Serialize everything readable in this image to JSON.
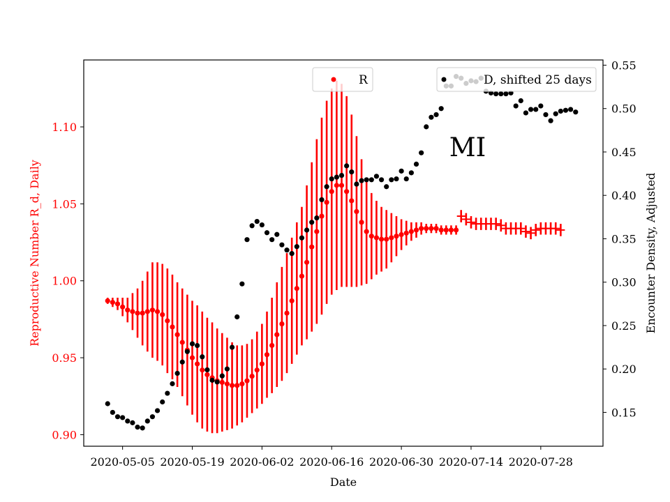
{
  "chart_data": {
    "type": "scatter",
    "annotation": "MI",
    "x_start": "2020-05-02",
    "xlabel": "Date",
    "ylabel_left": "Reproductive Number R_d, Daily",
    "ylabel_right": "Encounter Density, Adjusted",
    "x_ticks": [
      {
        "day": 3,
        "label": "2020-05-05"
      },
      {
        "day": 17,
        "label": "2020-05-19"
      },
      {
        "day": 31,
        "label": "2020-06-02"
      },
      {
        "day": 45,
        "label": "2020-06-16"
      },
      {
        "day": 59,
        "label": "2020-06-30"
      },
      {
        "day": 73,
        "label": "2020-07-14"
      },
      {
        "day": 87,
        "label": "2020-07-28"
      }
    ],
    "xlim": [
      -4.8,
      99.5
    ],
    "ylim_left": [
      0.8925,
      1.1435
    ],
    "ylim_right": [
      0.111,
      0.556
    ],
    "left_ticks": [
      {
        "value": 0.9,
        "label": "0.90"
      },
      {
        "value": 0.95,
        "label": "0.95"
      },
      {
        "value": 1.0,
        "label": "1.00"
      },
      {
        "value": 1.05,
        "label": "1.05"
      },
      {
        "value": 1.1,
        "label": "1.10"
      }
    ],
    "right_ticks": [
      {
        "value": 0.15,
        "label": "0.15"
      },
      {
        "value": 0.2,
        "label": "0.20"
      },
      {
        "value": 0.25,
        "label": "0.25"
      },
      {
        "value": 0.3,
        "label": "0.30"
      },
      {
        "value": 0.35,
        "label": "0.35"
      },
      {
        "value": 0.4,
        "label": "0.40"
      },
      {
        "value": 0.45,
        "label": "0.45"
      },
      {
        "value": 0.5,
        "label": "0.50"
      },
      {
        "value": 0.55,
        "label": "0.55"
      }
    ],
    "colors": {
      "R": "#ff0000",
      "D": "#000000",
      "left_axis": "#ff0000",
      "right_axis": "#000000"
    },
    "legend": [
      {
        "name": "R",
        "position": "top-center"
      },
      {
        "name": "D, shifted 25 days",
        "position": "top-right"
      }
    ],
    "series": [
      {
        "name": "R",
        "axis": "left",
        "start_day": 0,
        "values": [
          0.987,
          0.986,
          0.985,
          0.983,
          0.981,
          0.98,
          0.979,
          0.979,
          0.98,
          0.981,
          0.98,
          0.978,
          0.974,
          0.97,
          0.965,
          0.96,
          0.955,
          0.95,
          0.946,
          0.942,
          0.939,
          0.937,
          0.935,
          0.934,
          0.933,
          0.932,
          0.932,
          0.933,
          0.935,
          0.938,
          0.942,
          0.946,
          0.952,
          0.958,
          0.965,
          0.972,
          0.979,
          0.987,
          0.995,
          1.003,
          1.012,
          1.022,
          1.032,
          1.042,
          1.051,
          1.058,
          1.062,
          1.062,
          1.058,
          1.052,
          1.045,
          1.038,
          1.032,
          1.029,
          1.028,
          1.027,
          1.027,
          1.028,
          1.029,
          1.03,
          1.031,
          1.032,
          1.033,
          1.034,
          1.034,
          1.034,
          1.034,
          1.033,
          1.033,
          1.033,
          1.033,
          1.042,
          1.04,
          1.038,
          1.037,
          1.037,
          1.037,
          1.037,
          1.037,
          1.036,
          1.034,
          1.034,
          1.034,
          1.034,
          1.032,
          1.031,
          1.033,
          1.034,
          1.034,
          1.034,
          1.034,
          1.033
        ],
        "errors": [
          0.002,
          0.003,
          0.004,
          0.006,
          0.008,
          0.012,
          0.016,
          0.021,
          0.026,
          0.031,
          0.032,
          0.033,
          0.034,
          0.034,
          0.034,
          0.035,
          0.036,
          0.037,
          0.038,
          0.038,
          0.037,
          0.036,
          0.034,
          0.032,
          0.03,
          0.028,
          0.026,
          0.025,
          0.024,
          0.024,
          0.025,
          0.026,
          0.028,
          0.031,
          0.034,
          0.037,
          0.039,
          0.041,
          0.043,
          0.045,
          0.05,
          0.055,
          0.06,
          0.064,
          0.066,
          0.067,
          0.068,
          0.066,
          0.062,
          0.056,
          0.049,
          0.041,
          0.034,
          0.028,
          0.024,
          0.021,
          0.019,
          0.016,
          0.013,
          0.01,
          0.008,
          0.006,
          0.005,
          0.004,
          0.003,
          0.003,
          0.003,
          0.003,
          0.003,
          0.003,
          0.003,
          0.004,
          0.004,
          0.004,
          0.004,
          0.004,
          0.004,
          0.004,
          0.004,
          0.004,
          0.004,
          0.004,
          0.004,
          0.004,
          0.004,
          0.004,
          0.004,
          0.004,
          0.004,
          0.004,
          0.004,
          0.004
        ],
        "error_style_from_day": 71
      },
      {
        "name": "D, shifted 25 days",
        "axis": "right",
        "start_day": 0,
        "values": [
          0.16,
          0.15,
          0.145,
          0.144,
          0.14,
          0.138,
          0.133,
          0.132,
          0.14,
          0.145,
          0.152,
          0.162,
          0.172,
          0.183,
          0.195,
          0.208,
          0.22,
          0.229,
          0.227,
          0.214,
          0.199,
          0.187,
          0.185,
          0.192,
          0.2,
          0.225,
          0.26,
          0.298,
          0.349,
          0.365,
          0.37,
          0.366,
          0.357,
          0.349,
          0.355,
          0.343,
          0.337,
          0.333,
          0.341,
          0.351,
          0.36,
          0.369,
          0.374,
          0.395,
          0.41,
          0.419,
          0.421,
          0.423,
          0.434,
          0.427,
          0.413,
          0.417,
          0.418,
          0.418,
          0.422,
          0.418,
          0.41,
          0.418,
          0.419,
          0.428,
          0.419,
          0.426,
          0.436,
          0.449,
          0.479,
          0.49,
          0.493,
          0.5,
          0.526,
          0.526,
          0.537,
          0.535,
          0.529,
          0.532,
          0.531,
          0.535,
          0.52,
          0.518,
          0.517,
          0.517,
          0.517,
          0.518,
          0.503,
          0.509,
          0.495,
          0.499,
          0.499,
          0.503,
          0.493,
          0.486,
          0.494,
          0.497,
          0.498,
          0.499,
          0.496
        ]
      }
    ]
  }
}
